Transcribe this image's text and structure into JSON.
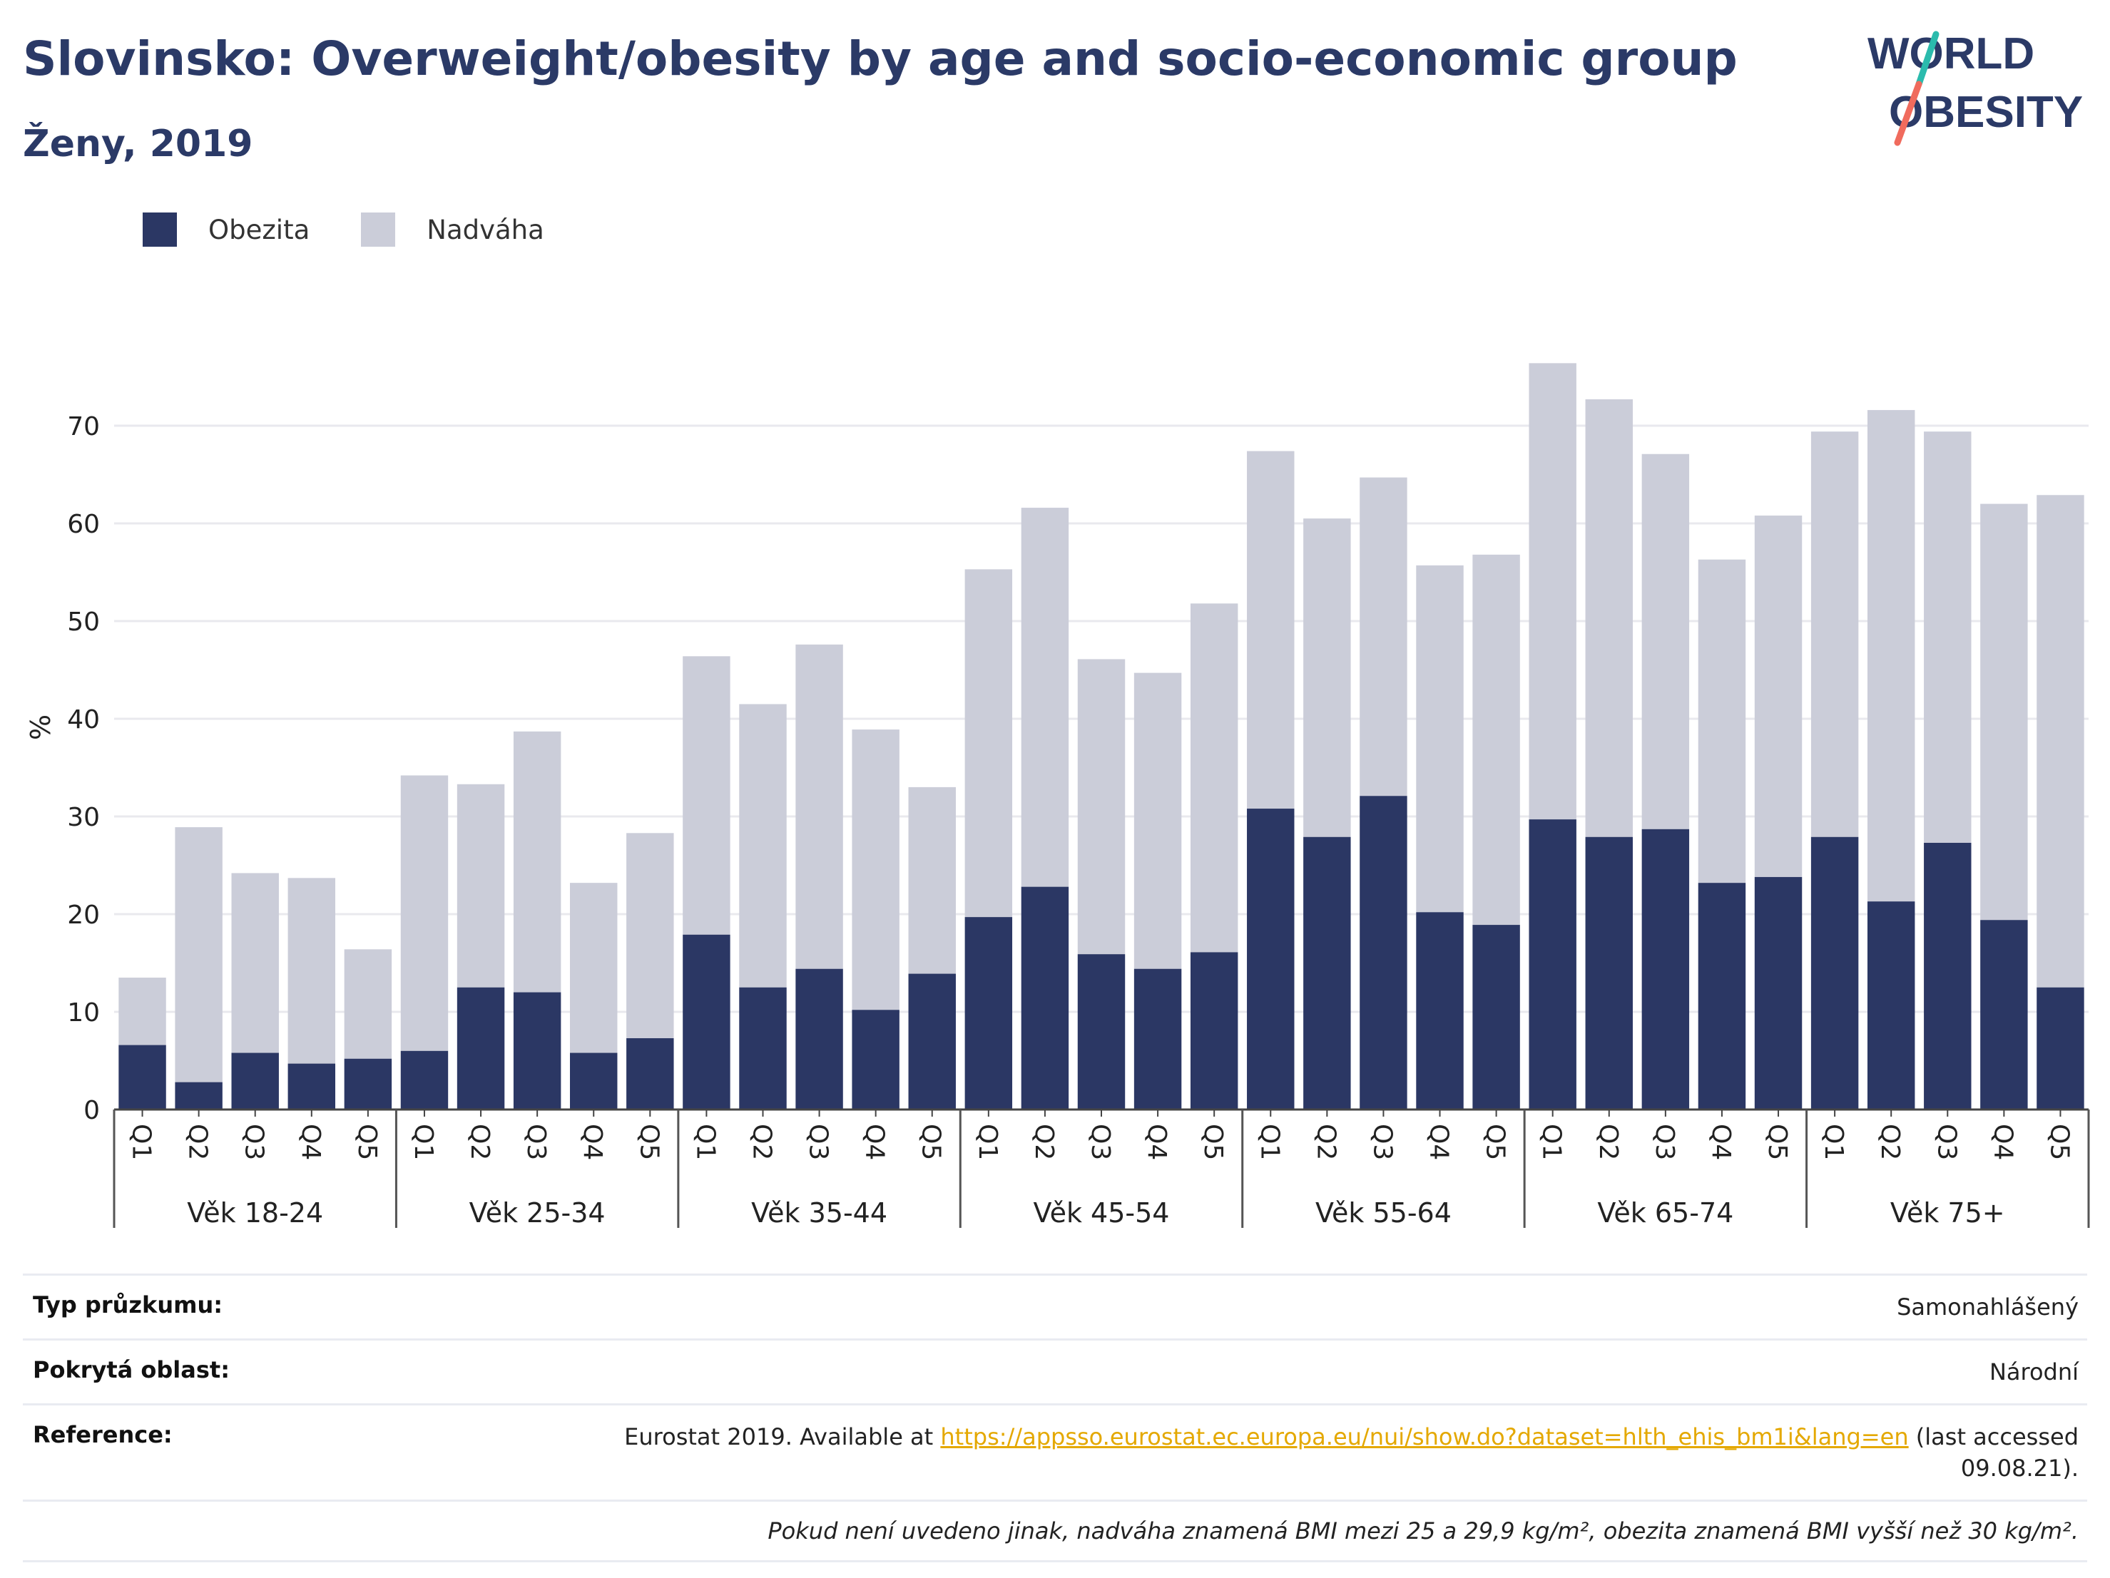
{
  "title": "Slovinsko: Overweight/obesity by age and socio-economic group",
  "subtitle": "Ženy, 2019",
  "logo": {
    "line1": "WORLD",
    "line2": "OBESITY",
    "accent_colors": [
      "#2bbbad",
      "#f06b5d"
    ]
  },
  "legend": [
    {
      "label": "Obezita",
      "color": "#2b3764"
    },
    {
      "label": "Nadváha",
      "color": "#cbcdd9"
    }
  ],
  "chart_data": {
    "type": "bar",
    "stacked": true,
    "ylabel": "%",
    "ylim": [
      0,
      80
    ],
    "yticks": [
      0,
      10,
      20,
      30,
      40,
      50,
      60,
      70
    ],
    "grid": true,
    "legend_position": "top-left",
    "groups": [
      "Věk 18-24",
      "Věk 25-34",
      "Věk 35-44",
      "Věk 45-54",
      "Věk 55-64",
      "Věk 65-74",
      "Věk 75+"
    ],
    "subcategories": [
      "Q1",
      "Q2",
      "Q3",
      "Q4",
      "Q5"
    ],
    "series": [
      {
        "name": "Obezita",
        "color": "#2b3764",
        "values": [
          6.6,
          2.8,
          5.8,
          4.7,
          5.2,
          6.0,
          12.5,
          12.0,
          5.8,
          7.3,
          17.9,
          12.5,
          14.4,
          10.2,
          13.9,
          19.7,
          22.8,
          15.9,
          14.4,
          16.1,
          30.8,
          27.9,
          32.1,
          20.2,
          18.9,
          29.7,
          27.9,
          28.7,
          23.2,
          23.8,
          27.9,
          21.3,
          27.3,
          19.4,
          12.5
        ]
      },
      {
        "name": "Nadváha",
        "color": "#cbcdd9",
        "values": [
          6.9,
          26.1,
          18.4,
          19.0,
          11.2,
          28.2,
          20.8,
          26.7,
          17.4,
          21.0,
          28.5,
          29.0,
          33.2,
          28.7,
          19.1,
          35.6,
          38.8,
          30.2,
          30.3,
          35.7,
          36.6,
          32.6,
          32.6,
          35.5,
          37.9,
          46.7,
          44.8,
          38.4,
          33.1,
          37.0,
          41.5,
          50.3,
          42.1,
          42.6,
          50.4
        ]
      }
    ]
  },
  "info": {
    "survey_label": "Typ průzkumu:",
    "survey_value": "Samonahlášený",
    "area_label": "Pokrytá oblast:",
    "area_value": "Národní",
    "reference_label": "Reference:",
    "reference_prefix": "Eurostat 2019. Available at ",
    "reference_link": "https://appsso.eurostat.ec.europa.eu/nui/show.do?dataset=hlth_ehis_bm1i&lang=en",
    "reference_suffix": " (last accessed",
    "reference_date": "09.08.21).",
    "note": "Pokud není uvedeno jinak, nadváha znamená BMI mezi 25 a 29,9 kg/m², obezita znamená BMI vyšší než 30 kg/m²."
  }
}
